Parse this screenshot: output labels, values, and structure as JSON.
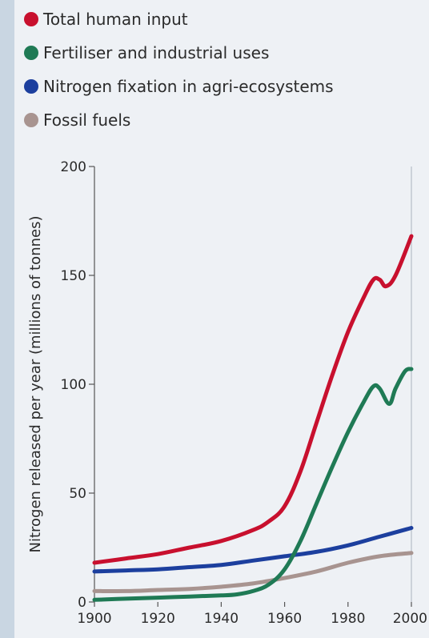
{
  "chart_data": {
    "type": "line",
    "title": "",
    "xlabel": "",
    "ylabel": "Nitrogen released per year (millions of tonnes)",
    "xlim": [
      1900,
      2000
    ],
    "ylim": [
      0,
      200
    ],
    "xticks": [
      1900,
      1920,
      1940,
      1960,
      1980,
      2000
    ],
    "yticks": [
      0,
      50,
      100,
      150,
      200
    ],
    "grid": false,
    "legend_placement": "top-left",
    "series": [
      {
        "name": "Total human input",
        "color": "#c8102e",
        "x": [
          1900,
          1910,
          1920,
          1930,
          1940,
          1950,
          1955,
          1960,
          1965,
          1970,
          1975,
          1980,
          1985,
          1988,
          1990,
          1992,
          1995,
          2000
        ],
        "y": [
          18,
          20,
          22,
          25,
          28,
          33,
          37,
          44,
          60,
          82,
          104,
          124,
          140,
          148,
          148,
          145,
          150,
          168
        ]
      },
      {
        "name": "Fertiliser and industrial uses",
        "color": "#1f7a55",
        "x": [
          1900,
          1910,
          1920,
          1930,
          1940,
          1945,
          1950,
          1955,
          1960,
          1965,
          1970,
          1975,
          1980,
          1985,
          1988,
          1990,
          1993,
          1995,
          1998,
          2000
        ],
        "y": [
          1,
          1.5,
          2,
          2.5,
          3,
          3.5,
          5,
          8,
          15,
          28,
          45,
          62,
          78,
          92,
          99,
          98,
          91,
          98,
          106,
          107
        ]
      },
      {
        "name": "Nitrogen fixation in agri-ecosystems",
        "color": "#1c3f9e",
        "x": [
          1900,
          1910,
          1920,
          1930,
          1940,
          1950,
          1960,
          1970,
          1980,
          1990,
          2000
        ],
        "y": [
          14,
          14.5,
          15,
          16,
          17,
          19,
          21,
          23,
          26,
          30,
          34
        ]
      },
      {
        "name": "Fossil fuels",
        "color": "#a89490",
        "x": [
          1900,
          1910,
          1920,
          1930,
          1940,
          1950,
          1960,
          1970,
          1980,
          1990,
          2000
        ],
        "y": [
          5,
          5,
          5.5,
          6,
          7,
          8.5,
          11,
          14,
          18,
          21,
          22.5
        ]
      }
    ]
  }
}
